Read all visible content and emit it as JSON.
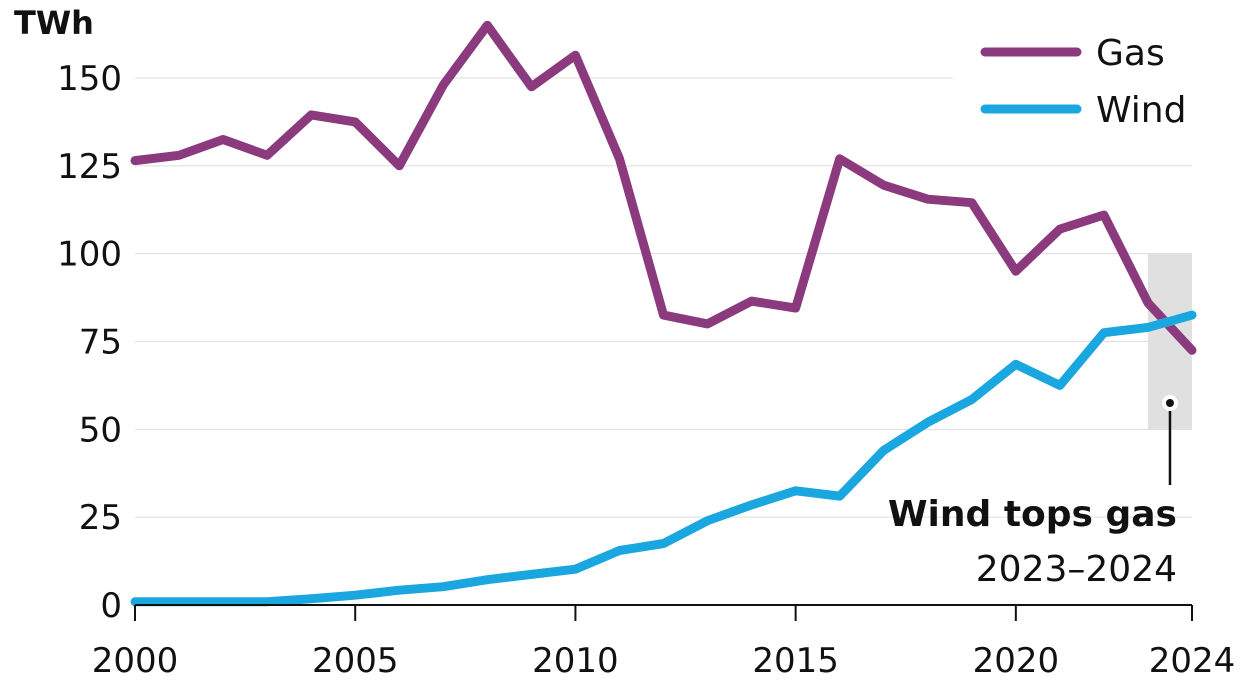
{
  "chart_data": {
    "type": "line",
    "ylabel": "TWh",
    "ylim": [
      0,
      150
    ],
    "yticks": [
      0,
      25,
      50,
      75,
      100,
      125,
      150
    ],
    "xlim": [
      2000,
      2024
    ],
    "xticks": [
      2000,
      2005,
      2010,
      2015,
      2020,
      2024
    ],
    "grid": true,
    "legend_position": "top-right",
    "x": [
      2000,
      2001,
      2002,
      2003,
      2004,
      2005,
      2006,
      2007,
      2008,
      2009,
      2010,
      2011,
      2012,
      2013,
      2014,
      2015,
      2016,
      2017,
      2018,
      2019,
      2020,
      2021,
      2022,
      2023,
      2024
    ],
    "series": [
      {
        "name": "Gas",
        "color": "#8b3a7e",
        "values": [
          126.5,
          128,
          132.5,
          128,
          139.5,
          137.5,
          125,
          148,
          165,
          147.5,
          156.5,
          127,
          82.5,
          80,
          86.5,
          84.5,
          127,
          119.5,
          115.5,
          114.5,
          95,
          107,
          111,
          86,
          72.5
        ]
      },
      {
        "name": "Wind",
        "color": "#1aa7e0",
        "values": [
          0.9,
          0.9,
          0.9,
          0.9,
          1.8,
          2.8,
          4.2,
          5.2,
          7.2,
          8.7,
          10.2,
          15.5,
          17.5,
          24,
          28.5,
          32.5,
          31,
          44,
          52,
          58.5,
          68.5,
          62.5,
          77.5,
          79,
          82.5
        ]
      }
    ],
    "highlight": {
      "x_start": 2023,
      "x_end": 2024,
      "y_start": 50,
      "y_end": 100,
      "color": "#e0e0e0"
    },
    "annotation": {
      "title": "Wind tops gas",
      "subtitle": "2023–2024"
    }
  }
}
